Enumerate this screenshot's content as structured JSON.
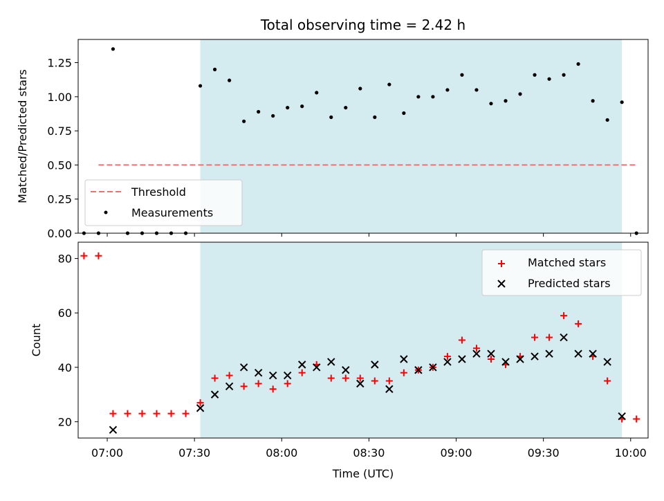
{
  "chart_data": [
    {
      "type": "scatter",
      "title": "Total observing time = 2.42 h",
      "ylabel": "Matched/Predicted stars",
      "xlabel": "",
      "xlim": [
        "06:50",
        "10:06"
      ],
      "ylim": [
        0,
        1.42
      ],
      "yticks": [
        "0.00",
        "0.25",
        "0.50",
        "0.75",
        "1.00",
        "1.25"
      ],
      "grid": false,
      "legend_position": "lower-left",
      "observing_window": {
        "start": "07:32",
        "end": "09:57",
        "color": "#d4ebf0"
      },
      "series": [
        {
          "name": "Threshold",
          "kind": "dashed-line",
          "color": "#f07070",
          "points": [
            {
              "x": "06:57",
              "y": 0.5
            },
            {
              "x": "10:02",
              "y": 0.5
            }
          ]
        },
        {
          "name": "Measurements",
          "kind": "dots",
          "color": "#000000",
          "points": [
            {
              "x": "06:52",
              "y": 0.0
            },
            {
              "x": "06:57",
              "y": 0.0
            },
            {
              "x": "07:02",
              "y": 1.35
            },
            {
              "x": "07:07",
              "y": 0.0
            },
            {
              "x": "07:12",
              "y": 0.0
            },
            {
              "x": "07:17",
              "y": 0.0
            },
            {
              "x": "07:22",
              "y": 0.0
            },
            {
              "x": "07:27",
              "y": 0.0
            },
            {
              "x": "07:32",
              "y": 1.08
            },
            {
              "x": "07:37",
              "y": 1.2
            },
            {
              "x": "07:42",
              "y": 1.12
            },
            {
              "x": "07:47",
              "y": 0.82
            },
            {
              "x": "07:52",
              "y": 0.89
            },
            {
              "x": "07:57",
              "y": 0.86
            },
            {
              "x": "08:02",
              "y": 0.92
            },
            {
              "x": "08:07",
              "y": 0.93
            },
            {
              "x": "08:12",
              "y": 1.03
            },
            {
              "x": "08:17",
              "y": 0.85
            },
            {
              "x": "08:22",
              "y": 0.92
            },
            {
              "x": "08:27",
              "y": 1.06
            },
            {
              "x": "08:32",
              "y": 0.85
            },
            {
              "x": "08:37",
              "y": 1.09
            },
            {
              "x": "08:42",
              "y": 0.88
            },
            {
              "x": "08:47",
              "y": 1.0
            },
            {
              "x": "08:52",
              "y": 1.0
            },
            {
              "x": "08:57",
              "y": 1.05
            },
            {
              "x": "09:02",
              "y": 1.16
            },
            {
              "x": "09:07",
              "y": 1.05
            },
            {
              "x": "09:12",
              "y": 0.95
            },
            {
              "x": "09:17",
              "y": 0.97
            },
            {
              "x": "09:22",
              "y": 1.02
            },
            {
              "x": "09:27",
              "y": 1.16
            },
            {
              "x": "09:32",
              "y": 1.13
            },
            {
              "x": "09:37",
              "y": 1.16
            },
            {
              "x": "09:42",
              "y": 1.24
            },
            {
              "x": "09:47",
              "y": 0.97
            },
            {
              "x": "09:52",
              "y": 0.83
            },
            {
              "x": "09:57",
              "y": 0.96
            },
            {
              "x": "10:02",
              "y": 0.0
            }
          ]
        }
      ]
    },
    {
      "type": "scatter",
      "title": "",
      "xlabel": "Time (UTC)",
      "ylabel": "Count",
      "xlim": [
        "06:50",
        "10:06"
      ],
      "xticks": [
        "07:00",
        "07:30",
        "08:00",
        "08:30",
        "09:00",
        "09:30",
        "10:00"
      ],
      "ylim": [
        14,
        86
      ],
      "yticks": [
        "20",
        "40",
        "60",
        "80"
      ],
      "grid": false,
      "legend_position": "upper-right",
      "observing_window": {
        "start": "07:32",
        "end": "09:57",
        "color": "#d4ebf0"
      },
      "series": [
        {
          "name": "Matched stars",
          "kind": "plus",
          "color": "#ff0000",
          "points": [
            {
              "x": "06:52",
              "y": 81
            },
            {
              "x": "06:57",
              "y": 81
            },
            {
              "x": "07:02",
              "y": 23
            },
            {
              "x": "07:07",
              "y": 23
            },
            {
              "x": "07:12",
              "y": 23
            },
            {
              "x": "07:17",
              "y": 23
            },
            {
              "x": "07:22",
              "y": 23
            },
            {
              "x": "07:27",
              "y": 23
            },
            {
              "x": "07:32",
              "y": 27
            },
            {
              "x": "07:37",
              "y": 36
            },
            {
              "x": "07:42",
              "y": 37
            },
            {
              "x": "07:47",
              "y": 33
            },
            {
              "x": "07:52",
              "y": 34
            },
            {
              "x": "07:57",
              "y": 32
            },
            {
              "x": "08:02",
              "y": 34
            },
            {
              "x": "08:07",
              "y": 38
            },
            {
              "x": "08:12",
              "y": 41
            },
            {
              "x": "08:17",
              "y": 36
            },
            {
              "x": "08:22",
              "y": 36
            },
            {
              "x": "08:27",
              "y": 36
            },
            {
              "x": "08:32",
              "y": 35
            },
            {
              "x": "08:37",
              "y": 35
            },
            {
              "x": "08:42",
              "y": 38
            },
            {
              "x": "08:47",
              "y": 39
            },
            {
              "x": "08:52",
              "y": 40
            },
            {
              "x": "08:57",
              "y": 44
            },
            {
              "x": "09:02",
              "y": 50
            },
            {
              "x": "09:07",
              "y": 47
            },
            {
              "x": "09:12",
              "y": 43
            },
            {
              "x": "09:17",
              "y": 41
            },
            {
              "x": "09:22",
              "y": 44
            },
            {
              "x": "09:27",
              "y": 51
            },
            {
              "x": "09:32",
              "y": 51
            },
            {
              "x": "09:37",
              "y": 59
            },
            {
              "x": "09:42",
              "y": 56
            },
            {
              "x": "09:47",
              "y": 44
            },
            {
              "x": "09:52",
              "y": 35
            },
            {
              "x": "09:57",
              "y": 21
            },
            {
              "x": "10:02",
              "y": 21
            }
          ]
        },
        {
          "name": "Predicted stars",
          "kind": "x",
          "color": "#000000",
          "points": [
            {
              "x": "07:02",
              "y": 17
            },
            {
              "x": "07:32",
              "y": 25
            },
            {
              "x": "07:37",
              "y": 30
            },
            {
              "x": "07:42",
              "y": 33
            },
            {
              "x": "07:47",
              "y": 40
            },
            {
              "x": "07:52",
              "y": 38
            },
            {
              "x": "07:57",
              "y": 37
            },
            {
              "x": "08:02",
              "y": 37
            },
            {
              "x": "08:07",
              "y": 41
            },
            {
              "x": "08:12",
              "y": 40
            },
            {
              "x": "08:17",
              "y": 42
            },
            {
              "x": "08:22",
              "y": 39
            },
            {
              "x": "08:27",
              "y": 34
            },
            {
              "x": "08:32",
              "y": 41
            },
            {
              "x": "08:37",
              "y": 32
            },
            {
              "x": "08:42",
              "y": 43
            },
            {
              "x": "08:47",
              "y": 39
            },
            {
              "x": "08:52",
              "y": 40
            },
            {
              "x": "08:57",
              "y": 42
            },
            {
              "x": "09:02",
              "y": 43
            },
            {
              "x": "09:07",
              "y": 45
            },
            {
              "x": "09:12",
              "y": 45
            },
            {
              "x": "09:17",
              "y": 42
            },
            {
              "x": "09:22",
              "y": 43
            },
            {
              "x": "09:27",
              "y": 44
            },
            {
              "x": "09:32",
              "y": 45
            },
            {
              "x": "09:37",
              "y": 51
            },
            {
              "x": "09:42",
              "y": 45
            },
            {
              "x": "09:47",
              "y": 45
            },
            {
              "x": "09:52",
              "y": 42
            },
            {
              "x": "09:57",
              "y": 22
            }
          ]
        }
      ]
    }
  ]
}
